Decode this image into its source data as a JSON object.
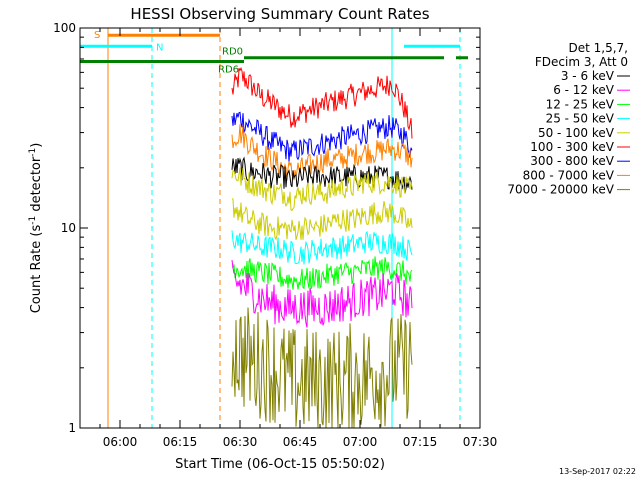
{
  "chart_data": {
    "type": "line",
    "title": "HESSI Observing Summary Count Rates",
    "xlabel": "Start Time (06-Oct-15 05:50:02)",
    "ylabel_main": "Count Rate (s",
    "ylabel_sup1": "-1",
    "ylabel_mid": " detector",
    "ylabel_sup2": "-1",
    "ylabel_end": ")",
    "yscale": "log",
    "xlim": [
      "05:50",
      "07:30"
    ],
    "ylim": [
      1,
      100
    ],
    "x_ticks": [
      "06:00",
      "06:15",
      "06:30",
      "06:45",
      "07:00",
      "07:15",
      "07:30"
    ],
    "y_ticks": [
      "1",
      "10",
      "100"
    ],
    "footer": "13-Sep-2017 02:22",
    "legend": {
      "header1": "Det 1,5,7,",
      "header2": "FDecim 3, Att 0",
      "entries": [
        {
          "label": "3 - 6 keV",
          "color": "#000000"
        },
        {
          "label": "6 - 12 keV",
          "color": "#ff00ff"
        },
        {
          "label": "12 - 25 keV",
          "color": "#00ff00"
        },
        {
          "label": "25 - 50 keV",
          "color": "#00ffff"
        },
        {
          "label": "50 - 100 keV",
          "color": "#cccc00"
        },
        {
          "label": "100 - 300 keV",
          "color": "#ff0000"
        },
        {
          "label": "300 - 800 keV",
          "color": "#0000ff"
        },
        {
          "label": "800 - 7000 keV",
          "color": "#ff8000"
        },
        {
          "label": "7000 - 20000 keV",
          "color": "#808000"
        }
      ]
    },
    "flag_bars": [
      {
        "label": "S",
        "color": "#ff8000",
        "y": 92,
        "segments": [
          [
            "05:57",
            "06:25"
          ]
        ]
      },
      {
        "label": "N",
        "color": "#00ffff",
        "y": 81,
        "segments": [
          [
            "05:50",
            "06:08"
          ],
          [
            "07:11",
            "07:25"
          ]
        ]
      },
      {
        "label": "RD0",
        "color": "#008000",
        "y": 71,
        "segments": [
          [
            "06:31",
            "07:11"
          ],
          [
            "07:11",
            "07:21"
          ],
          [
            "07:24",
            "07:27"
          ]
        ]
      },
      {
        "label": "RD6",
        "color": "#008000",
        "y": 68,
        "segments": [
          [
            "05:50",
            "06:31"
          ]
        ]
      }
    ],
    "vertical_markers": [
      {
        "time": "05:50",
        "color": "#00ffff",
        "style": "solid"
      },
      {
        "time": "05:57",
        "color": "#ff8000",
        "style": "solid"
      },
      {
        "time": "06:08",
        "color": "#00ffff",
        "style": "dashed"
      },
      {
        "time": "06:25",
        "color": "#ff8000",
        "style": "dashed"
      },
      {
        "time": "07:08",
        "color": "#00ffff",
        "style": "solid"
      },
      {
        "time": "07:25",
        "color": "#00ffff",
        "style": "dashed"
      }
    ],
    "series": [
      {
        "name": "100 - 300 keV",
        "color": "#ff0000",
        "x": [
          "06:28",
          "06:30",
          "06:32",
          "06:35",
          "06:38",
          "06:41",
          "06:43",
          "06:46",
          "06:49",
          "06:52",
          "06:55",
          "06:58",
          "07:01",
          "07:04",
          "07:07",
          "07:08",
          "07:11",
          "07:13"
        ],
        "values": [
          48,
          58,
          54,
          46,
          42,
          38,
          36,
          38,
          40,
          42,
          44,
          46,
          48,
          50,
          52,
          54,
          40,
          30
        ]
      },
      {
        "name": "300 - 800 keV",
        "color": "#0000ff",
        "x": [
          "06:28",
          "06:30",
          "06:32",
          "06:35",
          "06:38",
          "06:41",
          "06:43",
          "06:46",
          "06:49",
          "06:52",
          "06:55",
          "06:58",
          "07:01",
          "07:04",
          "07:07",
          "07:08",
          "07:11",
          "07:13"
        ],
        "values": [
          34,
          36,
          33,
          30,
          27,
          25,
          24,
          25,
          26,
          27,
          28,
          29,
          30,
          31,
          32,
          32,
          29,
          24
        ]
      },
      {
        "name": "800 - 7000 keV",
        "color": "#ff8000",
        "x": [
          "06:28",
          "06:30",
          "06:32",
          "06:35",
          "06:38",
          "06:41",
          "06:43",
          "06:46",
          "06:49",
          "06:52",
          "06:55",
          "06:58",
          "07:01",
          "07:04",
          "07:07",
          "07:08",
          "07:11",
          "07:13"
        ],
        "values": [
          28,
          30,
          27,
          24,
          22,
          20,
          19,
          20,
          21,
          22,
          22,
          23,
          24,
          24,
          25,
          25,
          24,
          22
        ]
      },
      {
        "name": "3 - 6 keV",
        "color": "#000000",
        "x": [
          "06:28",
          "06:30",
          "06:32",
          "06:35",
          "06:38",
          "06:41",
          "06:43",
          "06:46",
          "06:49",
          "06:52",
          "06:55",
          "06:58",
          "07:01",
          "07:04",
          "07:07",
          "07:08",
          "07:11",
          "07:13"
        ],
        "values": [
          20,
          20,
          19,
          19,
          18,
          18,
          17,
          18,
          18,
          18,
          18,
          18,
          18,
          18,
          18,
          18,
          17,
          17
        ]
      },
      {
        "name": "50 - 100 keV",
        "color": "#cccc00",
        "x": [
          "06:28",
          "06:30",
          "06:32",
          "06:35",
          "06:38",
          "06:41",
          "06:43",
          "06:46",
          "06:49",
          "06:52",
          "06:55",
          "06:58",
          "07:01",
          "07:04",
          "07:07",
          "07:08",
          "07:11",
          "07:13"
        ],
        "values": [
          19,
          18,
          17,
          16,
          15,
          15,
          14,
          15,
          15,
          15,
          16,
          16,
          17,
          17,
          17,
          17,
          16,
          15
        ]
      },
      {
        "name": "50 - 100 keV (low band)",
        "color": "#cccc00",
        "x": [
          "06:28",
          "06:30",
          "06:32",
          "06:35",
          "06:38",
          "06:41",
          "06:43",
          "06:46",
          "06:49",
          "06:52",
          "06:55",
          "06:58",
          "07:01",
          "07:04",
          "07:07",
          "07:08",
          "07:11",
          "07:13"
        ],
        "values": [
          13,
          12,
          11,
          10.5,
          10,
          10,
          9.8,
          10,
          10,
          10.5,
          11,
          11,
          11.5,
          12,
          12,
          12,
          11,
          10
        ]
      },
      {
        "name": "25 - 50 keV",
        "color": "#00ffff",
        "x": [
          "06:28",
          "06:30",
          "06:32",
          "06:35",
          "06:38",
          "06:41",
          "06:43",
          "06:46",
          "06:49",
          "06:52",
          "06:55",
          "06:58",
          "07:01",
          "07:04",
          "07:07",
          "07:08",
          "07:11",
          "07:13"
        ],
        "values": [
          9,
          8.5,
          8.5,
          8,
          8,
          7.8,
          7.5,
          7.5,
          7.8,
          8,
          8,
          8.2,
          8.5,
          8.5,
          8.5,
          8.5,
          8,
          7.5
        ]
      },
      {
        "name": "12 - 25 keV",
        "color": "#00ff00",
        "x": [
          "06:28",
          "06:30",
          "06:32",
          "06:35",
          "06:38",
          "06:41",
          "06:43",
          "06:46",
          "06:49",
          "06:52",
          "06:55",
          "06:58",
          "07:01",
          "07:04",
          "07:07",
          "07:08",
          "07:11",
          "07:13"
        ],
        "values": [
          6.5,
          6.3,
          6.2,
          6,
          5.8,
          5.6,
          5.5,
          5.5,
          5.6,
          5.8,
          6,
          6,
          6.2,
          6.3,
          6.3,
          6.3,
          6,
          5.5
        ]
      },
      {
        "name": "6 - 12 keV",
        "color": "#ff00ff",
        "x": [
          "06:28",
          "06:30",
          "06:32",
          "06:35",
          "06:38",
          "06:41",
          "06:43",
          "06:46",
          "06:49",
          "06:52",
          "06:55",
          "06:58",
          "07:01",
          "07:04",
          "07:07",
          "07:08",
          "07:11",
          "07:13"
        ],
        "values": [
          5.5,
          5.2,
          5,
          4.5,
          4.2,
          4,
          4,
          4,
          4,
          4,
          4.2,
          4.3,
          4.5,
          4.6,
          4.8,
          5,
          4.5,
          4
        ]
      },
      {
        "name": "7000 - 20000 keV",
        "color": "#808000",
        "x": [
          "06:28",
          "06:30",
          "06:32",
          "06:35",
          "06:38",
          "06:41",
          "06:43",
          "06:46",
          "06:49",
          "06:52",
          "06:55",
          "06:58",
          "07:01",
          "07:04",
          "07:07",
          "07:08",
          "07:11",
          "07:13"
        ],
        "values": [
          2.6,
          2.4,
          2.2,
          2.1,
          2.0,
          1.8,
          1.7,
          1.7,
          1.7,
          1.7,
          1.7,
          1.8,
          1.8,
          1.9,
          1.9,
          2.0,
          2.0,
          2.2
        ]
      }
    ]
  }
}
